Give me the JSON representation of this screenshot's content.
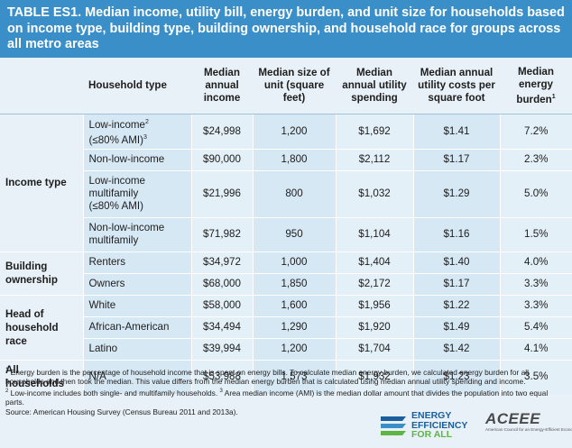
{
  "title": {
    "label": "TABLE ES1.",
    "text": "Median income, utility bill, energy burden, and unit size for households based on income type, building type, building ownership, and household race for groups across all metro areas"
  },
  "headers": {
    "household_type": "Household type",
    "income": "Median annual income",
    "size": "Median size of unit (square feet)",
    "spending": "Median annual utility spending",
    "cost_sqft": "Median annual utility costs per square foot",
    "burden": "Median energy burden",
    "burden_sup": "1"
  },
  "groups": {
    "income_type": "Income type",
    "building_ownership": "Building ownership",
    "head_race": "Head of household race",
    "all": "All households"
  },
  "rows": [
    {
      "type": "Low-income",
      "type_sup": "2",
      "type_line2": "(≤80% AMI)",
      "type_sup2": "3",
      "income": "$24,998",
      "size": "1,200",
      "spending": "$1,692",
      "cost": "$1.41",
      "burden": "7.2%"
    },
    {
      "type": "Non-low-income",
      "income": "$90,000",
      "size": "1,800",
      "spending": "$2,112",
      "cost": "$1.17",
      "burden": "2.3%"
    },
    {
      "type": "Low-income",
      "type_line2": "multifamily",
      "type_line3": "(≤80% AMI)",
      "income": "$21,996",
      "size": "800",
      "spending": "$1,032",
      "cost": "$1.29",
      "burden": "5.0%"
    },
    {
      "type": "Non-low-income",
      "type_line2": "multifamily",
      "income": "$71,982",
      "size": "950",
      "spending": "$1,104",
      "cost": "$1.16",
      "burden": "1.5%"
    },
    {
      "type": "Renters",
      "income": "$34,972",
      "size": "1,000",
      "spending": "$1,404",
      "cost": "$1.40",
      "burden": "4.0%"
    },
    {
      "type": "Owners",
      "income": "$68,000",
      "size": "1,850",
      "spending": "$2,172",
      "cost": "$1.17",
      "burden": "3.3%"
    },
    {
      "type": "White",
      "income": "$58,000",
      "size": "1,600",
      "spending": "$1,956",
      "cost": "$1.22",
      "burden": "3.3%"
    },
    {
      "type": "African-American",
      "income": "$34,494",
      "size": "1,290",
      "spending": "$1,920",
      "cost": "$1.49",
      "burden": "5.4%"
    },
    {
      "type": "Latino",
      "income": "$39,994",
      "size": "1,200",
      "spending": "$1,704",
      "cost": "$1.42",
      "burden": "4.1%"
    },
    {
      "type": "N/A",
      "income": "$53,988",
      "size": "1,573",
      "spending": "$1,932",
      "cost": "$1.23",
      "burden": "3.5%"
    }
  ],
  "footnotes": {
    "fn1_sup": "1",
    "fn1": "Energy burden is the percentage of household income that is spent on energy bills. To calculate median energy burden, we calculated energy burden for all households and then took the median. This value differs from the median energy burden that is calculated using median annual utility spending and income.",
    "fn2_sup": "2",
    "fn2": "Low-income includes both single- and multifamily households.",
    "fn3_sup": "3",
    "fn3": "Area median income (AMI) is the median dollar amount that divides the population into two equal parts.",
    "source": "Source: American Housing Survey (Census Bureau 2011 and 2013a)."
  },
  "logos": {
    "eefa_line1": "ENERGY",
    "eefa_line2": "EFFICIENCY",
    "eefa_line3": "FOR ALL",
    "aceee": "ACEEE",
    "aceee_sub": "American Council for an Energy-Efficient Economy"
  },
  "colors": {
    "title_bg": "#3a8fc8",
    "page_bg": "#e8f1f8",
    "cell_dark": "#d7e8f5",
    "cell_light": "#e3f0f8",
    "eefa_blue": "#1b5e9e",
    "eefa_green": "#5cb544"
  }
}
